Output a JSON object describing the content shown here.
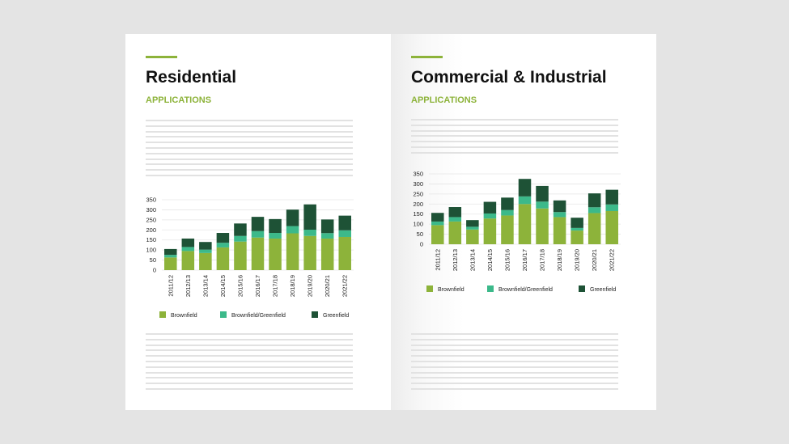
{
  "colors": {
    "accent": "#8db33a",
    "brownfield": "#8db33a",
    "mixed": "#3cb98a",
    "greenfield": "#1e5236"
  },
  "pages": [
    {
      "title": "Residential",
      "subtitle": "APPLICATIONS"
    },
    {
      "title": "Commercial & Industrial",
      "subtitle": "APPLICATIONS"
    }
  ],
  "chart_data": [
    {
      "type": "bar",
      "stacked": true,
      "title": "Residential Applications",
      "ylim": [
        0,
        350
      ],
      "yticks": [
        0,
        50,
        100,
        150,
        200,
        250,
        300,
        350
      ],
      "categories": [
        "2011/12",
        "2012/13",
        "2013/14",
        "2014/15",
        "2015/16",
        "2016/17",
        "2017/18",
        "2018/19",
        "2019/20",
        "2020/21",
        "2021/22"
      ],
      "series": [
        {
          "name": "Brownfield",
          "values": [
            63,
            95,
            85,
            113,
            142,
            162,
            157,
            183,
            170,
            157,
            165
          ]
        },
        {
          "name": "Brownfield/Greenfield",
          "values": [
            13,
            20,
            17,
            23,
            28,
            32,
            28,
            36,
            31,
            27,
            33
          ]
        },
        {
          "name": "Greenfield",
          "values": [
            29,
            42,
            38,
            49,
            62,
            71,
            69,
            82,
            126,
            68,
            73
          ]
        }
      ],
      "legend": "bottom",
      "grid": true
    },
    {
      "type": "bar",
      "stacked": true,
      "title": "Commercial & Industrial Applications",
      "ylim": [
        0,
        350
      ],
      "yticks": [
        0,
        50,
        100,
        150,
        200,
        250,
        300,
        350
      ],
      "categories": [
        "2011/12",
        "2012/13",
        "2013/14",
        "2014/15",
        "2015/16",
        "2016/17",
        "2017/18",
        "2018/19",
        "2019/20",
        "2020/21",
        "2021/22"
      ],
      "series": [
        {
          "name": "Brownfield",
          "values": [
            95,
            113,
            73,
            128,
            143,
            200,
            178,
            135,
            68,
            155,
            165
          ]
        },
        {
          "name": "Brownfield/Greenfield",
          "values": [
            18,
            22,
            14,
            25,
            27,
            38,
            34,
            25,
            13,
            29,
            33
          ]
        },
        {
          "name": "Greenfield",
          "values": [
            43,
            50,
            33,
            58,
            62,
            87,
            78,
            58,
            51,
            69,
            73
          ]
        }
      ],
      "legend": "bottom",
      "grid": true
    }
  ]
}
